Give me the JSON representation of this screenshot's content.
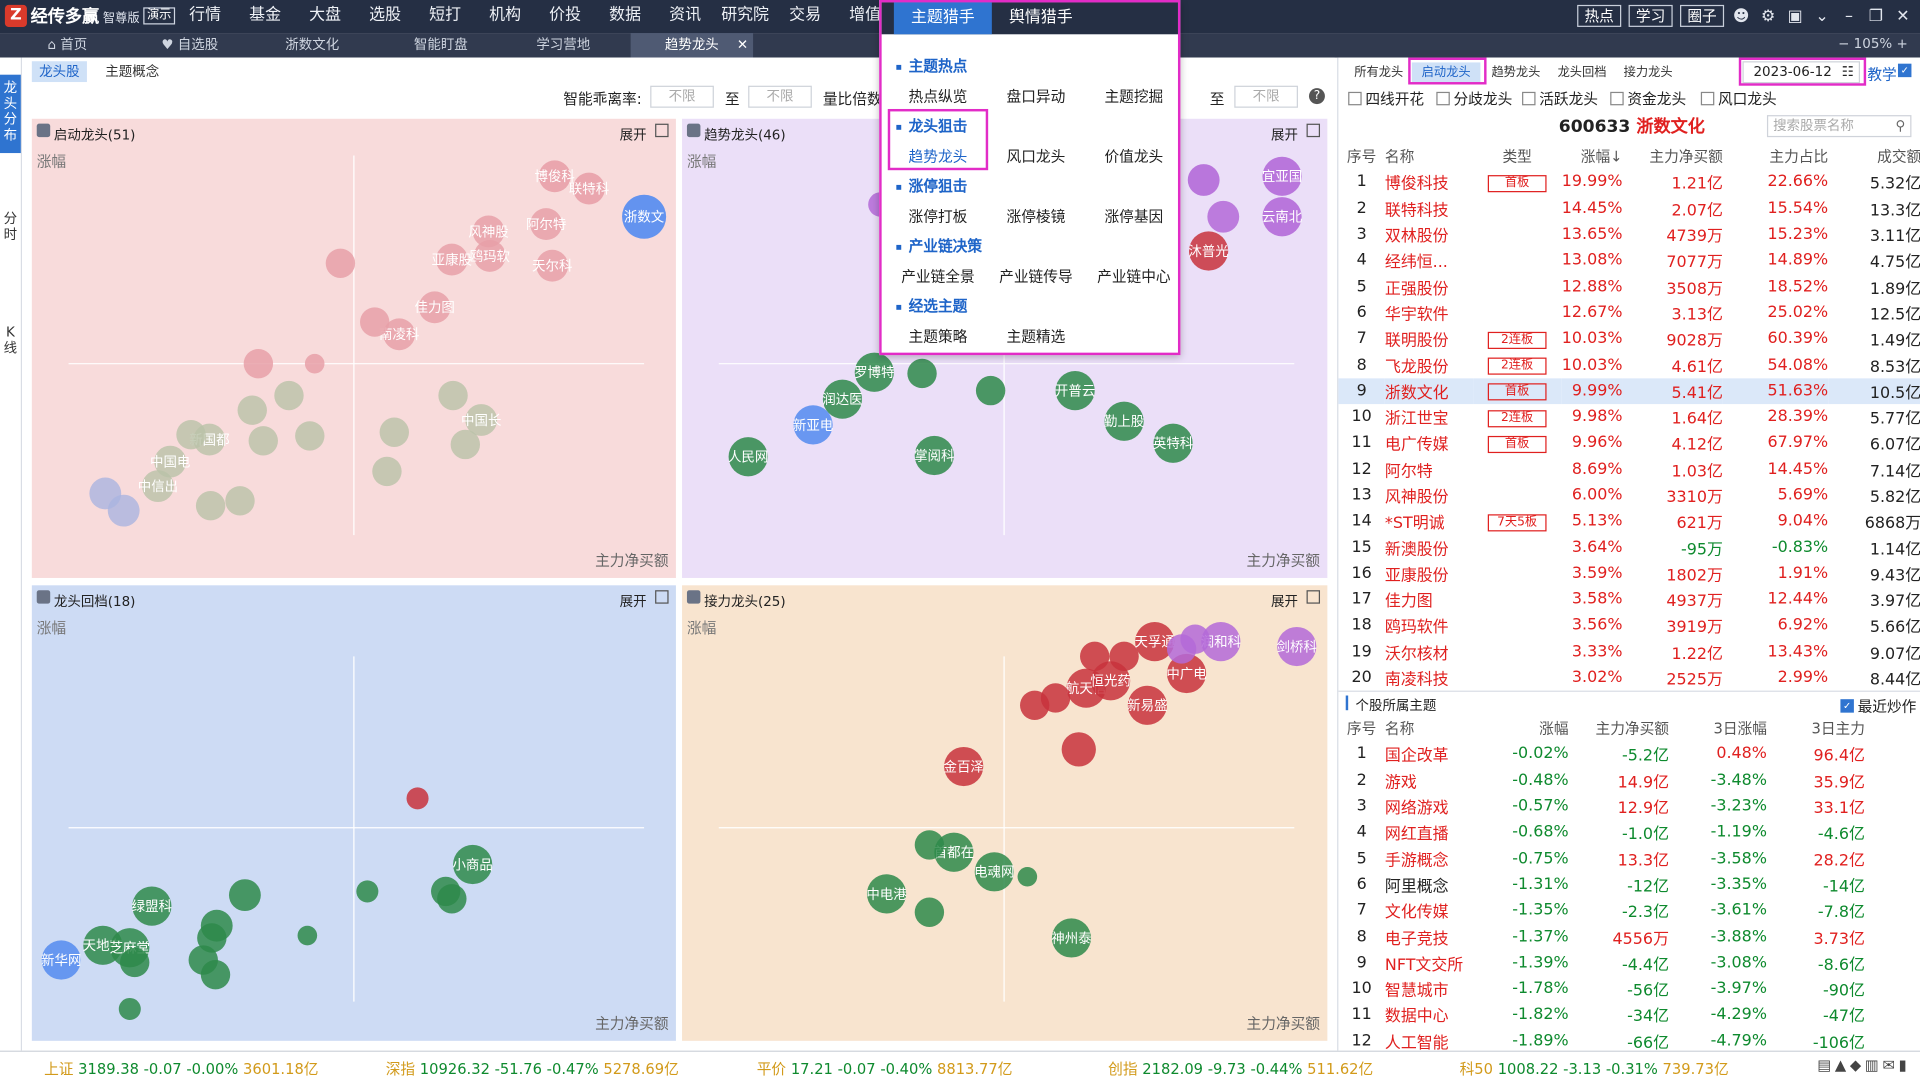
{
  "app": {
    "name": "经传多赢",
    "edition": "智尊版",
    "demo": "演示",
    "logo_char": "Z"
  },
  "top_menu": [
    "行情",
    "基金",
    "大盘",
    "选股",
    "短打",
    "机构",
    "价投",
    "数据",
    "资讯",
    "研究院",
    "交易",
    "增值"
  ],
  "top_right": {
    "buttons": [
      "热点",
      "学习",
      "圈子"
    ],
    "icons": [
      "user-icon",
      "gear-icon",
      "window-icon",
      "chevron-down-icon",
      "minimize-icon",
      "restore-icon",
      "close-icon"
    ]
  },
  "tabs": [
    "首页",
    "自选股",
    "浙数文化",
    "智能盯盘",
    "学习营地",
    "趋势龙头"
  ],
  "side_tabs": [
    "龙头分布",
    "分时",
    "K线"
  ],
  "main": {
    "sub_tabs": [
      "龙头股",
      "主题概念"
    ],
    "filters": {
      "label1": "智能乖离率:",
      "placeholder": "不限",
      "to": "至",
      "label2": "量比倍数"
    },
    "quadrants": [
      {
        "title": "启动龙头(51)",
        "expand": "展开",
        "ylabel": "涨幅",
        "xlabel": "主力净买额"
      },
      {
        "title": "趋势龙头(46)",
        "expand": "展开",
        "ylabel": "涨幅",
        "xlabel": "主力净买额"
      },
      {
        "title": "龙头回档(18)",
        "expand": "展开",
        "ylabel": "涨幅",
        "xlabel": "主力净买额"
      },
      {
        "title": "接力龙头(25)",
        "expand": "展开",
        "ylabel": "涨幅",
        "xlabel": "主力净买额"
      }
    ],
    "bubbles_q1": [
      "博俊科技",
      "联特科技",
      "浙数文化",
      "风神股份",
      "亚康股份",
      "鸥玛软件",
      "天尔科技",
      "阿尔特",
      "佳力图",
      "南凌科技",
      "中国长城",
      "新国都",
      "中国电信",
      "中信出版"
    ],
    "bubbles_q2": [
      "宜亚国际",
      "云南北明",
      "沐普光磁",
      "罗博特科",
      "润达医疗",
      "新亚电子",
      "人民网",
      "开普云",
      "掌阅科技",
      "勤上股份",
      "英特科技"
    ],
    "bubbles_q3": [
      "小商品城",
      "绿盟科技",
      "天地在线",
      "芝麻堂",
      "新华网"
    ],
    "bubbles_q4": [
      "天孚通信",
      "润和科技",
      "剑桥科技",
      "中广电",
      "航天信息",
      "新易盛",
      "恒光药业",
      "金百泽",
      "首都在线",
      "电魂网络",
      "中电港",
      "神州泰岳"
    ]
  },
  "dropdown": {
    "tabs": [
      "主题猎手",
      "舆情猎手"
    ],
    "sections": [
      {
        "title": "主题热点",
        "items": [
          "热点纵览",
          "盘口异动",
          "主题挖掘"
        ]
      },
      {
        "title": "龙头狙击",
        "items": [
          "趋势龙头",
          "风口龙头",
          "价值龙头"
        ]
      },
      {
        "title": "涨停狙击",
        "items": [
          "涨停打板",
          "涨停棱镜",
          "涨停基因"
        ]
      },
      {
        "title": "产业链决策",
        "items": [
          "产业链全景",
          "产业链传导",
          "产业链中心"
        ]
      },
      {
        "title": "经选主题",
        "items": [
          "主题策略",
          "主题精选"
        ]
      }
    ]
  },
  "right": {
    "tabs": [
      "所有龙头",
      "启动龙头",
      "趋势龙头",
      "龙头回档",
      "接力龙头"
    ],
    "date": "2023-06-12",
    "teach": "教学",
    "checkboxes": [
      "四线开花",
      "分歧龙头",
      "活跃龙头",
      "资金龙头",
      "风口龙头"
    ],
    "stock": {
      "code": "600633",
      "name": "浙数文化"
    },
    "search_placeholder": "搜索股票名称",
    "columns": [
      "序号",
      "名称",
      "类型",
      "涨幅↓",
      "主力净买额",
      "主力占比",
      "成交额"
    ],
    "rows": [
      [
        "1",
        "博俊科技",
        "首板",
        "19.99%",
        "1.21亿",
        "22.66%",
        "5.32亿"
      ],
      [
        "2",
        "联特科技",
        "",
        "14.45%",
        "2.07亿",
        "15.54%",
        "13.3亿"
      ],
      [
        "3",
        "双林股份",
        "",
        "13.65%",
        "4739万",
        "15.23%",
        "3.11亿"
      ],
      [
        "4",
        "经纬恒...",
        "",
        "13.08%",
        "7077万",
        "14.89%",
        "4.75亿"
      ],
      [
        "5",
        "正强股份",
        "",
        "12.88%",
        "3508万",
        "18.52%",
        "1.89亿"
      ],
      [
        "6",
        "华宇软件",
        "",
        "12.67%",
        "3.13亿",
        "25.02%",
        "12.5亿"
      ],
      [
        "7",
        "联明股份",
        "2连板",
        "10.03%",
        "9028万",
        "60.39%",
        "1.49亿"
      ],
      [
        "8",
        "飞龙股份",
        "2连板",
        "10.03%",
        "4.61亿",
        "54.08%",
        "8.53亿"
      ],
      [
        "9",
        "浙数文化",
        "首板",
        "9.99%",
        "5.41亿",
        "51.63%",
        "10.5亿"
      ],
      [
        "10",
        "浙江世宝",
        "2连板",
        "9.98%",
        "1.64亿",
        "28.39%",
        "5.77亿"
      ],
      [
        "11",
        "电广传媒",
        "首板",
        "9.96%",
        "4.12亿",
        "67.97%",
        "6.07亿"
      ],
      [
        "12",
        "阿尔特",
        "",
        "8.69%",
        "1.03亿",
        "14.45%",
        "7.14亿"
      ],
      [
        "13",
        "风神股份",
        "",
        "6.00%",
        "3310万",
        "5.69%",
        "5.82亿"
      ],
      [
        "14",
        "*ST明诚",
        "7天5板",
        "5.13%",
        "621万",
        "9.04%",
        "6868万"
      ],
      [
        "15",
        "新澳股份",
        "",
        "3.64%",
        "-95万",
        "-0.83%",
        "1.14亿"
      ],
      [
        "16",
        "亚康股份",
        "",
        "3.59%",
        "1802万",
        "1.91%",
        "9.43亿"
      ],
      [
        "17",
        "佳力图",
        "",
        "3.58%",
        "4937万",
        "12.44%",
        "3.97亿"
      ],
      [
        "18",
        "鸥玛软件",
        "",
        "3.56%",
        "3919万",
        "6.92%",
        "5.66亿"
      ],
      [
        "19",
        "沃尔核材",
        "",
        "3.33%",
        "1.22亿",
        "13.43%",
        "9.07亿"
      ],
      [
        "20",
        "南凌科技",
        "",
        "3.02%",
        "2525万",
        "2.99%",
        "8.44亿"
      ]
    ],
    "theme_title": "个股所属主题",
    "recent_hype": "最近炒作",
    "theme_columns": [
      "序号",
      "名称",
      "涨幅",
      "主力净买额",
      "3日涨幅",
      "3日主力"
    ],
    "theme_rows": [
      [
        "1",
        "国企改革",
        "-0.02%",
        "-5.2亿",
        "0.48%",
        "96.4亿"
      ],
      [
        "2",
        "游戏",
        "-0.48%",
        "14.9亿",
        "-3.48%",
        "35.9亿"
      ],
      [
        "3",
        "网络游戏",
        "-0.57%",
        "12.9亿",
        "-3.23%",
        "33.1亿"
      ],
      [
        "4",
        "网红直播",
        "-0.68%",
        "-1.0亿",
        "-1.19%",
        "-4.6亿"
      ],
      [
        "5",
        "手游概念",
        "-0.75%",
        "13.3亿",
        "-3.58%",
        "28.2亿"
      ],
      [
        "6",
        "阿里概念",
        "-1.31%",
        "-12亿",
        "-3.35%",
        "-14亿"
      ],
      [
        "7",
        "文化传媒",
        "-1.35%",
        "-2.3亿",
        "-3.61%",
        "-7.8亿"
      ],
      [
        "8",
        "电子竞技",
        "-1.37%",
        "4556万",
        "-3.88%",
        "3.73亿"
      ],
      [
        "9",
        "NFT文交所",
        "-1.39%",
        "-4.4亿",
        "-3.08%",
        "-8.6亿"
      ],
      [
        "10",
        "智慧城市",
        "-1.78%",
        "-56亿",
        "-3.97%",
        "-90亿"
      ],
      [
        "11",
        "数据中心",
        "-1.82%",
        "-34亿",
        "-4.29%",
        "-47亿"
      ],
      [
        "12",
        "人工智能",
        "-1.89%",
        "-66亿",
        "-4.79%",
        "-106亿"
      ]
    ]
  },
  "zoom": "105%",
  "indices": [
    {
      "name": "上证",
      "price": "3189.38",
      "chg": "-0.07",
      "pct": "-0.00%",
      "amt": "3601.18亿"
    },
    {
      "name": "深指",
      "price": "10926.32",
      "chg": "-51.76",
      "pct": "-0.47%",
      "amt": "5278.69亿"
    },
    {
      "name": "平价",
      "price": "17.21",
      "chg": "-0.07",
      "pct": "-0.40%",
      "amt": "8813.77亿"
    },
    {
      "name": "创指",
      "price": "2182.09",
      "chg": "-9.73",
      "pct": "-0.44%",
      "amt": "511.62亿"
    },
    {
      "name": "科50",
      "price": "1008.22",
      "chg": "-3.13",
      "pct": "-0.31%",
      "amt": "739.73亿"
    }
  ],
  "colors": {
    "accent": "#2f74d0",
    "up": "#e0201f",
    "down": "#0e8a2e",
    "highlight": "#e22cc7"
  }
}
